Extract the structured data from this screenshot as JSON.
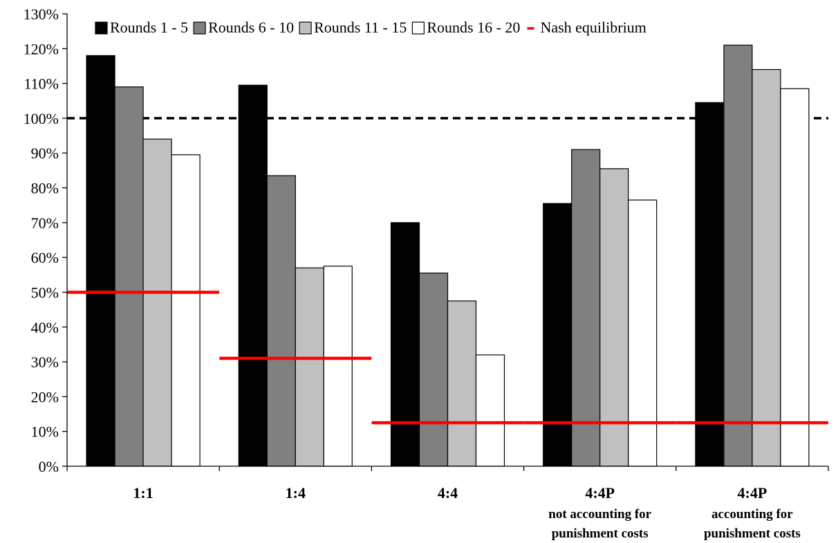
{
  "chart_data": {
    "type": "bar",
    "categories": [
      {
        "label": "1:1",
        "sub": []
      },
      {
        "label": "1:4",
        "sub": []
      },
      {
        "label": "4:4",
        "sub": []
      },
      {
        "label": "4:4P",
        "sub": [
          "not accounting for",
          "punishment costs"
        ]
      },
      {
        "label": "4:4P",
        "sub": [
          "accounting for",
          "punishment costs"
        ]
      }
    ],
    "series": [
      {
        "name": "Rounds 1 - 5",
        "color": "#000000",
        "values": [
          118,
          109.5,
          70,
          75.5,
          104.5
        ]
      },
      {
        "name": "Rounds 6 - 10",
        "color": "#808080",
        "values": [
          109,
          83.5,
          55.5,
          91,
          121
        ]
      },
      {
        "name": "Rounds 11 - 15",
        "color": "#c0c0c0",
        "values": [
          94,
          57,
          47.5,
          85.5,
          114
        ]
      },
      {
        "name": "Rounds 16 - 20",
        "color": "#ffffff",
        "values": [
          89.5,
          57.5,
          32,
          76.5,
          108.5
        ]
      }
    ],
    "nash": {
      "name": "Nash equilibrium",
      "color": "#ff0000",
      "values": [
        50,
        31,
        12.5,
        12.5,
        12.5
      ]
    },
    "reference_line": {
      "value": 100,
      "style": "dashed",
      "color": "#000000"
    },
    "ylim": [
      0,
      130
    ],
    "ytick_step": 10,
    "ytick_suffix": "%",
    "title": "",
    "xlabel": "",
    "ylabel": "",
    "legend_position": "top",
    "grid": false
  }
}
